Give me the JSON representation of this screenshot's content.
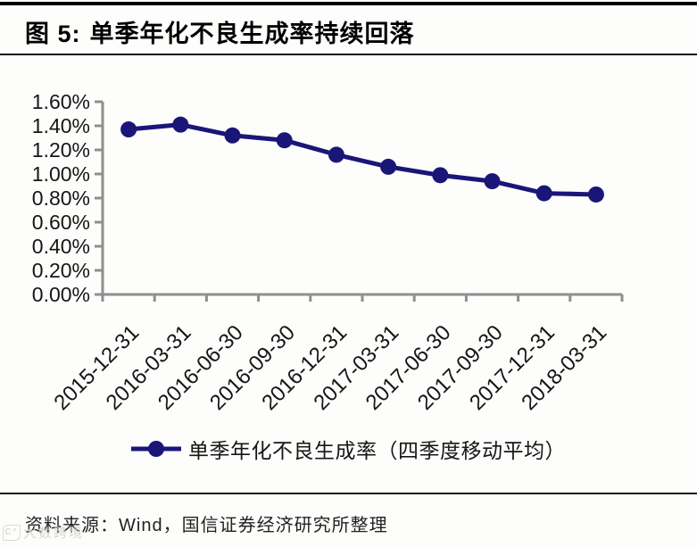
{
  "header": {
    "figure_label": "图 5:",
    "title": "单季年化不良生成率持续回落"
  },
  "footer": {
    "source_label": "资料来源：",
    "source_text": "Wind，国信证券经济研究所整理"
  },
  "watermark": {
    "text": "大数跨境"
  },
  "colors": {
    "line": "#1a1678",
    "axis": "#8f8f8f",
    "text": "#161616"
  },
  "chart_data": {
    "type": "line",
    "title": "单季年化不良生成率持续回落",
    "categories": [
      "2015-12-31",
      "2016-03-31",
      "2016-06-30",
      "2016-09-30",
      "2016-12-31",
      "2017-03-31",
      "2017-06-30",
      "2017-09-30",
      "2017-12-31",
      "2018-03-31"
    ],
    "series": [
      {
        "name": "单季年化不良生成率（四季度移动平均）",
        "values": [
          1.37,
          1.41,
          1.32,
          1.28,
          1.16,
          1.06,
          0.99,
          0.94,
          0.84,
          0.83
        ]
      }
    ],
    "xlabel": "",
    "ylabel": "",
    "ylim": [
      0,
      1.6
    ],
    "ytick_step": 0.2,
    "ytick_format": "0.00%",
    "grid": false,
    "legend_position": "bottom",
    "marker": "circle"
  }
}
